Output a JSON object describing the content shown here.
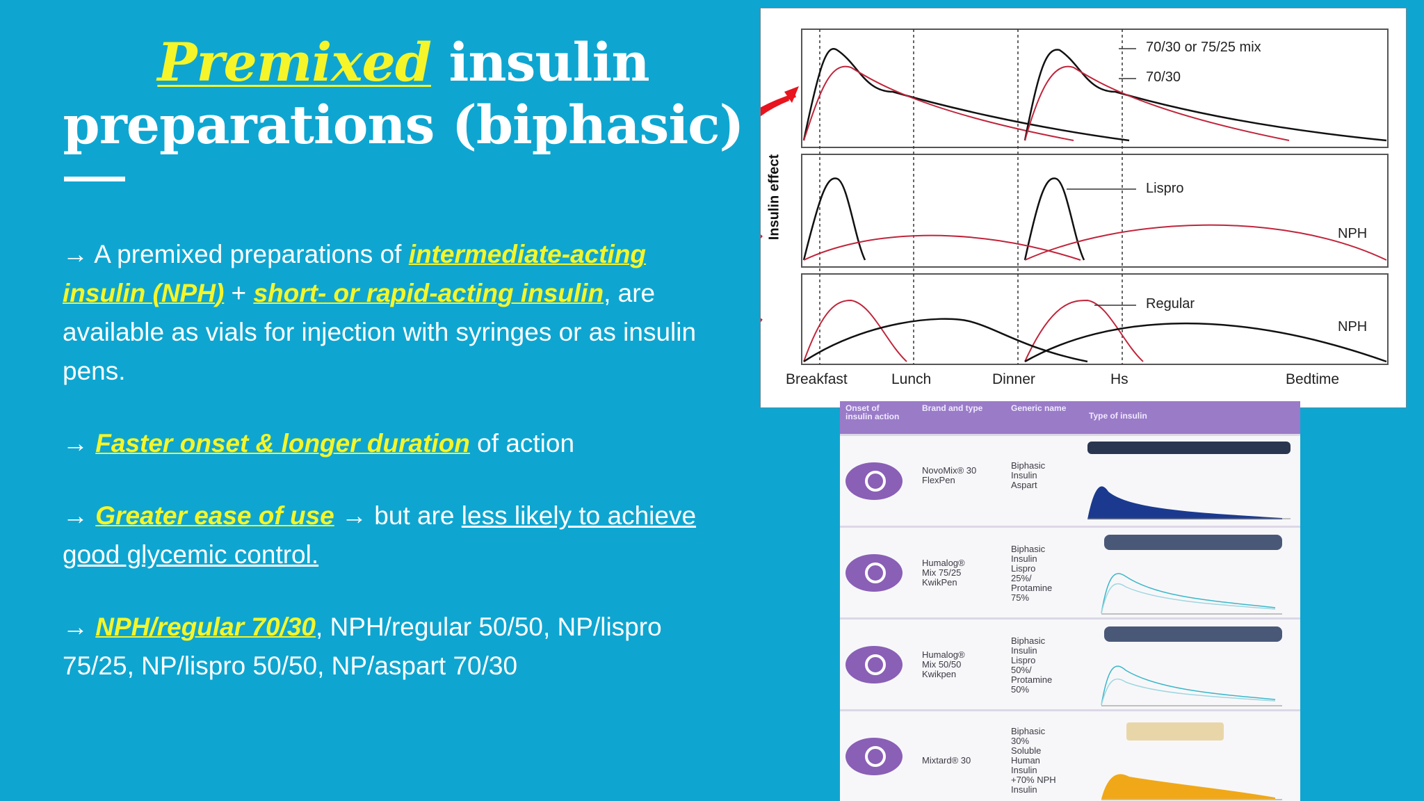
{
  "title": {
    "highlight": "Premixed",
    "rest_line1": " insulin",
    "line2": "preparations (biphasic)"
  },
  "bullets": {
    "b1": {
      "arrow": "→ ",
      "text1": "A premixed preparations of ",
      "hl1": "intermediate-acting insulin (NPH)",
      "text2": " + ",
      "hl2": "short- or rapid-acting insulin",
      "text3": ", are available as vials for injection with syringes or as insulin pens."
    },
    "b2": {
      "arrow": "→ ",
      "hl": "Faster onset & longer duration",
      "text": " of action"
    },
    "b3": {
      "arrow": "→ ",
      "hl": "Greater ease of use",
      "text": " → but are ",
      "ul": "less likely to achieve good glycemic control."
    },
    "b4": {
      "arrow": "→ ",
      "hl": "NPH/regular 70/30",
      "text": ", NPH/regular 50/50, NP/lispro 75/25, NP/lispro 50/50, NP/aspart 70/30"
    }
  },
  "graph": {
    "ylabel": "Insulin effect",
    "x_labels": [
      "Breakfast",
      "Lunch",
      "Dinner",
      "Hs",
      "Bedtime"
    ],
    "panel1_labels": [
      "70/30 or 75/25 mix",
      "70/30"
    ],
    "panel2_labels": [
      "Lispro",
      "NPH"
    ],
    "panel3_labels": [
      "Regular",
      "NPH"
    ],
    "colors": {
      "black_curve": "#111111",
      "red_curve": "#c0243a",
      "arrow": "#e8141e"
    }
  },
  "table": {
    "headers": [
      "Onset of insulin action",
      "Brand and type",
      "Generic name",
      "Type of insulin"
    ],
    "rows": [
      {
        "brand": "NovoMix® 30\nFlexPen",
        "generic": "Biphasic\nInsulin\nAspart"
      },
      {
        "brand": "Humalog®\nMix 75/25\nKwikPen",
        "generic": "Biphasic\nInsulin\nLispro\n25%/\nProtamine\n75%"
      },
      {
        "brand": "Humalog®\nMix 50/50\nKwikpen",
        "generic": "Biphasic\nInsulin\nLispro\n50%/\nProtamine\n50%"
      },
      {
        "brand": "Mixtard® 30",
        "generic": "Biphasic\n30%\nSoluble\nHuman\nInsulin\n+70% NPH\nInsulin"
      }
    ]
  }
}
